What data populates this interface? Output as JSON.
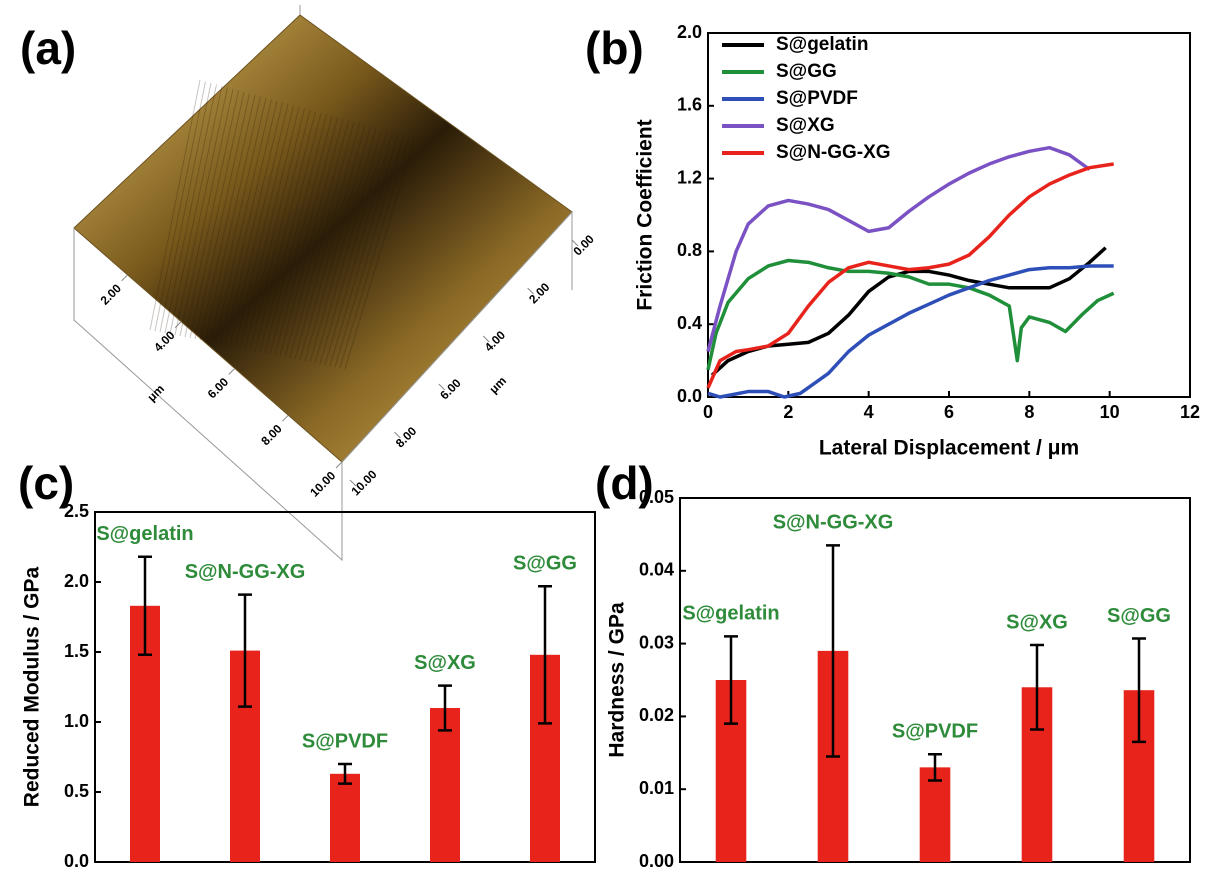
{
  "chart_data": [
    {
      "type": "surface",
      "panel_label": "(a)",
      "xticks": [
        {
          "value": 2,
          "label": "2.00"
        },
        {
          "value": 4,
          "label": "4.00"
        },
        {
          "value": 6,
          "label": "6.00"
        },
        {
          "value": 8,
          "label": "8.00"
        },
        {
          "value": 10,
          "label": "10.00"
        }
      ],
      "yticks": [
        {
          "value": 0,
          "label": "0.00"
        },
        {
          "value": 2,
          "label": "2.00"
        },
        {
          "value": 4,
          "label": "4.00"
        },
        {
          "value": 6,
          "label": "6.00"
        },
        {
          "value": 8,
          "label": "8.00"
        },
        {
          "value": 10,
          "label": "10.00"
        }
      ],
      "xlim": [
        0,
        10
      ],
      "ylim": [
        0,
        10
      ],
      "xlabel": "μm",
      "ylabel": "μm"
    },
    {
      "type": "line",
      "panel_label": "(b)",
      "xlabel": "Lateral Displacement / μm",
      "ylabel": "Friction Coefficient",
      "xlim": [
        0,
        12
      ],
      "ylim": [
        0,
        2
      ],
      "xticks": [
        0,
        2,
        4,
        6,
        8,
        10,
        12
      ],
      "yticks": [
        {
          "value": 0,
          "label": "0.0"
        },
        0.4,
        0.8,
        1.2,
        1.6,
        {
          "value": 2,
          "label": "2.0"
        }
      ],
      "legend": "upper left",
      "series": [
        {
          "name": "S@gelatin",
          "color": "#000000",
          "x": [
            0.1,
            0.5,
            1,
            1.5,
            2,
            2.5,
            3,
            3.5,
            4,
            4.5,
            5,
            5.5,
            6,
            6.5,
            7,
            7.5,
            8,
            8.5,
            9,
            9.5,
            9.9
          ],
          "values": [
            0.12,
            0.2,
            0.25,
            0.28,
            0.29,
            0.3,
            0.35,
            0.45,
            0.58,
            0.66,
            0.69,
            0.69,
            0.67,
            0.64,
            0.62,
            0.6,
            0.6,
            0.6,
            0.65,
            0.74,
            0.82
          ]
        },
        {
          "name": "S@GG",
          "color": "#1f8f3a",
          "x": [
            0,
            0.2,
            0.5,
            1,
            1.5,
            2,
            2.5,
            3,
            3.5,
            4,
            4.5,
            5,
            5.5,
            6,
            6.5,
            7,
            7.5,
            7.7,
            7.8,
            8,
            8.5,
            8.9,
            9.3,
            9.7,
            10.1
          ],
          "values": [
            0.15,
            0.35,
            0.52,
            0.65,
            0.72,
            0.75,
            0.74,
            0.71,
            0.69,
            0.69,
            0.68,
            0.66,
            0.62,
            0.62,
            0.6,
            0.56,
            0.5,
            0.2,
            0.38,
            0.44,
            0.41,
            0.36,
            0.45,
            0.53,
            0.57
          ]
        },
        {
          "name": "S@PVDF",
          "color": "#2f4fb8",
          "x": [
            0,
            0.3,
            1,
            1.5,
            1.9,
            2.3,
            3,
            3.5,
            4,
            4.5,
            5,
            5.5,
            6,
            6.5,
            7,
            7.5,
            8,
            8.5,
            9,
            9.5,
            10.1
          ],
          "values": [
            0.02,
            0,
            0.03,
            0.03,
            0,
            0.02,
            0.13,
            0.25,
            0.34,
            0.4,
            0.46,
            0.51,
            0.56,
            0.6,
            0.64,
            0.67,
            0.7,
            0.71,
            0.71,
            0.72,
            0.72
          ]
        },
        {
          "name": "S@XG",
          "color": "#7b52c4",
          "x": [
            0,
            0.3,
            0.7,
            1,
            1.5,
            2,
            2.5,
            3,
            3.5,
            4,
            4.5,
            5,
            5.5,
            6,
            6.5,
            7,
            7.5,
            8,
            8.5,
            9,
            9.5
          ],
          "values": [
            0.25,
            0.5,
            0.8,
            0.95,
            1.05,
            1.08,
            1.06,
            1.03,
            0.97,
            0.91,
            0.93,
            1.02,
            1.1,
            1.17,
            1.23,
            1.28,
            1.32,
            1.35,
            1.37,
            1.33,
            1.25
          ]
        },
        {
          "name": "S@N-GG-XG",
          "color": "#e8231c",
          "x": [
            0,
            0.3,
            0.7,
            1,
            1.5,
            2,
            2.5,
            3,
            3.5,
            4,
            4.5,
            5,
            5.5,
            6,
            6.5,
            7,
            7.5,
            8,
            8.5,
            9,
            9.5,
            10.1
          ],
          "values": [
            0.05,
            0.2,
            0.25,
            0.26,
            0.28,
            0.35,
            0.5,
            0.63,
            0.71,
            0.74,
            0.72,
            0.7,
            0.71,
            0.73,
            0.78,
            0.88,
            1.0,
            1.1,
            1.17,
            1.22,
            1.26,
            1.28
          ]
        }
      ]
    },
    {
      "type": "bar",
      "panel_label": "(c)",
      "ylabel": "Reduced Modulus / GPa",
      "ylim": [
        0,
        2.5
      ],
      "yticks": [
        {
          "value": 0,
          "label": "0.0"
        },
        0.5,
        {
          "value": 1,
          "label": "1.0"
        },
        1.5,
        {
          "value": 2,
          "label": "2.0"
        },
        2.5
      ],
      "categories": [
        "S@gelatin",
        "S@N-GG-XG",
        "S@PVDF",
        "S@XG",
        "S@GG"
      ],
      "values": [
        1.83,
        1.51,
        0.63,
        1.1,
        1.48
      ],
      "errors": [
        0.35,
        0.4,
        0.07,
        0.16,
        0.49
      ],
      "color": "#e8231c",
      "label_color": "#2e8b3a"
    },
    {
      "type": "bar",
      "panel_label": "(d)",
      "ylabel": "Hardness / GPa",
      "ylim": [
        0,
        0.05
      ],
      "yticks": [
        {
          "value": 0,
          "label": "0.00"
        },
        0.01,
        0.02,
        0.03,
        0.04,
        0.05
      ],
      "categories": [
        "S@gelatin",
        "S@N-GG-XG",
        "S@PVDF",
        "S@XG",
        "S@GG"
      ],
      "values": [
        0.025,
        0.029,
        0.013,
        0.024,
        0.0236
      ],
      "errors": [
        0.006,
        0.0145,
        0.0018,
        0.0058,
        0.0071
      ],
      "color": "#e8231c",
      "label_color": "#2e8b3a"
    }
  ]
}
